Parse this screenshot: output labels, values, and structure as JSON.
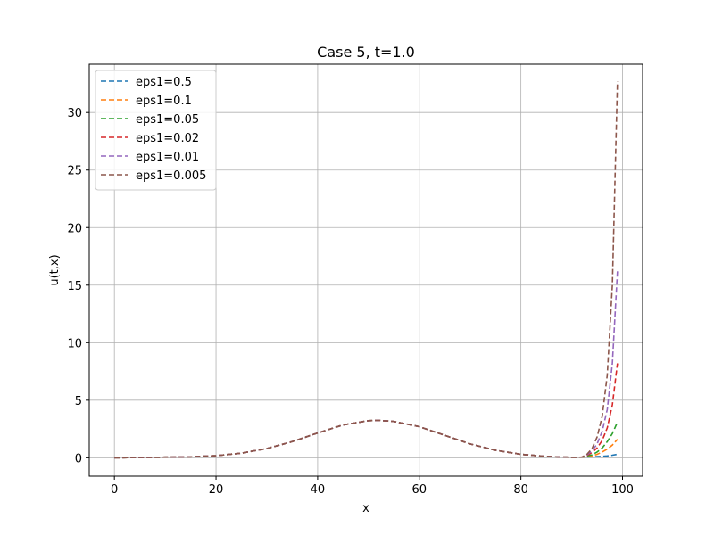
{
  "chart_data": {
    "type": "line",
    "title": "Case 5, t=1.0",
    "xlabel": "x",
    "ylabel": "u(t,x)",
    "xlim": [
      -4.95,
      103.95
    ],
    "ylim": [
      -1.6,
      34.2
    ],
    "xticks": [
      0,
      20,
      40,
      60,
      80,
      100
    ],
    "yticks": [
      0,
      5,
      10,
      15,
      20,
      25,
      30
    ],
    "grid": true,
    "legend_position": "upper-left",
    "line_style": "dashed",
    "base_curve": {
      "x": [
        0,
        5,
        10,
        15,
        20,
        25,
        30,
        35,
        40,
        45,
        50,
        52,
        55,
        60,
        65,
        70,
        75,
        80,
        85,
        88,
        90,
        92
      ],
      "y": [
        0.0,
        0.02,
        0.05,
        0.08,
        0.18,
        0.4,
        0.8,
        1.4,
        2.15,
        2.85,
        3.22,
        3.25,
        3.15,
        2.7,
        1.95,
        1.2,
        0.65,
        0.3,
        0.12,
        0.06,
        0.04,
        0.05
      ]
    },
    "series": [
      {
        "name": "eps1=0.5",
        "color": "#1f77b4",
        "x": [
          92,
          94,
          96,
          97,
          98,
          99
        ],
        "y": [
          0.05,
          0.08,
          0.12,
          0.16,
          0.22,
          0.3
        ]
      },
      {
        "name": "eps1=0.1",
        "color": "#ff7f0e",
        "x": [
          92,
          94,
          95,
          96,
          97,
          98,
          99
        ],
        "y": [
          0.05,
          0.15,
          0.3,
          0.5,
          0.75,
          1.1,
          1.6
        ]
      },
      {
        "name": "eps1=0.05",
        "color": "#2ca02c",
        "x": [
          92,
          94,
          95,
          96,
          97,
          98,
          99
        ],
        "y": [
          0.05,
          0.25,
          0.5,
          0.85,
          1.4,
          2.1,
          3.1
        ]
      },
      {
        "name": "eps1=0.02",
        "color": "#d62728",
        "x": [
          92,
          93,
          94,
          95,
          96,
          97,
          98,
          99
        ],
        "y": [
          0.05,
          0.2,
          0.45,
          0.85,
          1.5,
          2.6,
          4.6,
          8.2
        ]
      },
      {
        "name": "eps1=0.01",
        "color": "#9467bd",
        "x": [
          92,
          93,
          94,
          95,
          96,
          97,
          98,
          99
        ],
        "y": [
          0.05,
          0.25,
          0.6,
          1.2,
          2.3,
          4.2,
          8.2,
          16.2
        ]
      },
      {
        "name": "eps1=0.005",
        "color": "#8c564b",
        "x": [
          92,
          93,
          94,
          95,
          96,
          97,
          98,
          99
        ],
        "y": [
          0.05,
          0.3,
          0.8,
          1.8,
          3.6,
          7.2,
          15.0,
          32.7
        ]
      }
    ]
  }
}
